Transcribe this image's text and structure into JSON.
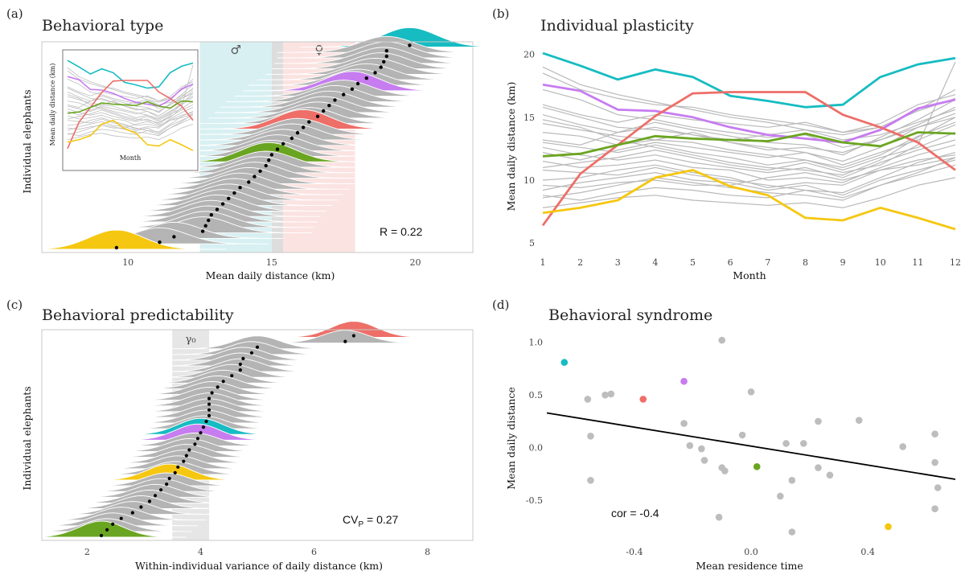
{
  "colors": {
    "teal": "#16bcc2",
    "purple": "#c77cf0",
    "red": "#ee6e68",
    "green": "#6aa521",
    "yellow": "#f5c710",
    "grey": "#b4b4b4"
  },
  "chart_data": [
    {
      "panel": "(a)",
      "type": "ridgeline",
      "title": "Behavioral type",
      "xlabel": "Mean daily distance (km)",
      "ylabel": "Individual elephants",
      "xlim": [
        7,
        22
      ],
      "xticks": [
        10,
        15,
        20
      ],
      "band_male": {
        "label": "♂",
        "range": [
          12.5,
          15
        ]
      },
      "band_female": {
        "label": "♀",
        "range": [
          15.4,
          17.9
        ]
      },
      "annotation": "R = 0.22",
      "means": [
        9.6,
        11.1,
        11.6,
        12.6,
        12.7,
        12.8,
        12.9,
        13.1,
        13.3,
        13.5,
        13.7,
        13.9,
        14.2,
        14.4,
        14.6,
        14.8,
        14.9,
        15.0,
        15.2,
        15.4,
        15.7,
        15.9,
        16.1,
        16.3,
        16.6,
        16.8,
        17.0,
        17.2,
        17.5,
        17.8,
        18.0,
        18.3,
        18.6,
        18.8,
        18.9,
        19.0,
        19.0,
        19.8
      ],
      "highlights": [
        {
          "index": 0,
          "color": "yellow"
        },
        {
          "index": 16,
          "color": "green"
        },
        {
          "index": 22,
          "color": "red"
        },
        {
          "index": 29,
          "color": "purple"
        },
        {
          "index": 37,
          "color": "teal"
        }
      ],
      "inset": {
        "ylabel": "Mean daily distance (km)",
        "xlabel": "Month"
      }
    },
    {
      "panel": "(b)",
      "type": "line",
      "title": "Individual plasticity",
      "xlabel": "Month",
      "ylabel": "Mean daily distance (km)",
      "x": [
        1,
        2,
        3,
        4,
        5,
        6,
        7,
        8,
        9,
        10,
        11,
        12
      ],
      "xlim": [
        1,
        12
      ],
      "ylim": [
        4.5,
        21
      ],
      "yticks": [
        5,
        10,
        15,
        20
      ],
      "series": [
        {
          "name": "teal",
          "color": "teal",
          "values": [
            20.1,
            19.1,
            18.0,
            18.8,
            18.2,
            16.7,
            16.3,
            15.8,
            16.0,
            18.2,
            19.2,
            19.7
          ]
        },
        {
          "name": "purple",
          "color": "purple",
          "values": [
            17.6,
            17.1,
            15.6,
            15.5,
            15.0,
            14.2,
            13.6,
            13.3,
            13.0,
            14.0,
            15.7,
            16.4
          ]
        },
        {
          "name": "red",
          "color": "red",
          "values": [
            6.4,
            10.5,
            12.8,
            15.1,
            16.9,
            17.0,
            17.0,
            17.0,
            15.2,
            14.2,
            13.0,
            10.8
          ]
        },
        {
          "name": "green",
          "color": "green",
          "values": [
            11.9,
            12.1,
            12.8,
            13.5,
            13.3,
            13.2,
            13.1,
            13.7,
            13.0,
            12.7,
            13.8,
            13.7
          ]
        },
        {
          "name": "yellow",
          "color": "yellow",
          "values": [
            7.4,
            7.8,
            8.4,
            10.2,
            10.8,
            9.5,
            8.8,
            7.0,
            6.8,
            7.8,
            7.0,
            6.1
          ]
        }
      ],
      "grey_series": [
        [
          19.0,
          17.6,
          16.8,
          16.2,
          15.6,
          15.0,
          14.6,
          14.0,
          13.6,
          14.2,
          15.5,
          16.5
        ],
        [
          18.5,
          17.2,
          16.5,
          16.0,
          15.8,
          15.2,
          14.8,
          14.4,
          13.8,
          14.5,
          16.0,
          16.8
        ],
        [
          16.0,
          15.2,
          14.6,
          15.2,
          14.8,
          14.5,
          14.2,
          14.6,
          13.8,
          14.2,
          15.6,
          17.2
        ],
        [
          15.2,
          14.4,
          13.8,
          14.6,
          14.0,
          13.5,
          13.0,
          12.8,
          12.0,
          13.4,
          14.8,
          16.4
        ],
        [
          14.5,
          14.0,
          13.5,
          13.2,
          13.8,
          13.0,
          12.6,
          12.2,
          11.5,
          12.6,
          14.2,
          15.3
        ],
        [
          13.8,
          13.5,
          12.8,
          13.2,
          13.0,
          12.4,
          12.0,
          11.6,
          11.0,
          12.0,
          13.5,
          14.6
        ],
        [
          13.0,
          12.6,
          12.2,
          12.8,
          12.2,
          11.8,
          11.2,
          11.6,
          10.8,
          11.8,
          12.6,
          13.8
        ],
        [
          12.6,
          12.0,
          11.6,
          12.0,
          11.4,
          11.0,
          10.6,
          11.0,
          10.2,
          11.4,
          12.4,
          13.2
        ],
        [
          11.5,
          11.0,
          11.2,
          11.6,
          11.0,
          10.8,
          10.0,
          10.2,
          9.8,
          11.0,
          12.0,
          12.8
        ],
        [
          10.8,
          10.6,
          10.4,
          11.0,
          10.4,
          10.0,
          9.6,
          9.2,
          9.0,
          10.2,
          11.4,
          12.2
        ],
        [
          10.0,
          10.2,
          10.8,
          11.2,
          10.6,
          10.2,
          9.4,
          9.8,
          9.6,
          10.8,
          11.6,
          12.0
        ],
        [
          9.2,
          9.8,
          10.2,
          10.6,
          10.0,
          9.8,
          9.2,
          9.6,
          8.8,
          10.0,
          10.8,
          11.6
        ],
        [
          8.6,
          9.0,
          9.6,
          10.2,
          9.8,
          9.4,
          9.0,
          8.8,
          8.4,
          9.6,
          10.4,
          11.2
        ],
        [
          7.8,
          8.2,
          8.6,
          8.8,
          8.4,
          8.2,
          8.0,
          8.2,
          7.8,
          8.6,
          9.6,
          10.2
        ],
        [
          8.8,
          8.4,
          9.0,
          9.4,
          9.2,
          8.8,
          8.6,
          9.2,
          8.6,
          9.6,
          10.6,
          11.8
        ],
        [
          14.8,
          14.2,
          13.2,
          12.6,
          12.0,
          11.4,
          11.0,
          10.8,
          10.4,
          11.6,
          13.4,
          15.0
        ],
        [
          13.2,
          12.8,
          13.8,
          14.2,
          13.6,
          13.0,
          12.4,
          12.6,
          12.2,
          13.2,
          14.4,
          15.8
        ],
        [
          12.2,
          11.6,
          12.4,
          13.0,
          12.6,
          12.2,
          11.8,
          12.2,
          11.2,
          12.2,
          13.2,
          14.4
        ],
        [
          17.2,
          16.4,
          15.2,
          14.8,
          14.2,
          13.8,
          13.4,
          13.6,
          12.6,
          13.2,
          14.2,
          15.0
        ],
        [
          11.0,
          11.4,
          11.8,
          12.4,
          11.8,
          11.2,
          10.8,
          11.4,
          10.6,
          11.2,
          12.8,
          19.4
        ],
        [
          9.6,
          9.4,
          9.8,
          10.0,
          9.6,
          9.6,
          10.2,
          10.6,
          10.0,
          10.8,
          11.2,
          11.8
        ],
        [
          15.8,
          15.0,
          14.2,
          14.0,
          13.6,
          13.2,
          13.6,
          14.0,
          13.2,
          13.6,
          14.6,
          15.6
        ]
      ]
    },
    {
      "panel": "(c)",
      "type": "ridgeline",
      "title": "Behavioral predictability",
      "xlabel": "Within-individual variance of daily distance (km)",
      "ylabel": "Individual elephants",
      "xlim": [
        1.2,
        8.8
      ],
      "xticks": [
        2,
        4,
        6,
        8
      ],
      "band": {
        "label": "γ₀",
        "range": [
          3.5,
          4.15
        ]
      },
      "annotation": "CV",
      "annotation_sub": "P",
      "annotation_val": " = 0.27",
      "means": [
        2.25,
        2.35,
        2.45,
        2.6,
        2.8,
        2.95,
        3.1,
        3.2,
        3.3,
        3.4,
        3.45,
        3.55,
        3.6,
        3.7,
        3.75,
        3.8,
        3.9,
        3.95,
        4.0,
        4.05,
        4.1,
        4.15,
        4.15,
        4.15,
        4.15,
        4.2,
        4.3,
        4.4,
        4.55,
        4.7,
        4.7,
        4.75,
        4.9,
        5.0,
        6.55,
        6.7
      ],
      "highlights": [
        {
          "index": 0,
          "color": "green"
        },
        {
          "index": 10,
          "color": "yellow"
        },
        {
          "index": 17,
          "color": "purple"
        },
        {
          "index": 18,
          "color": "teal"
        },
        {
          "index": 35,
          "color": "red"
        }
      ]
    },
    {
      "panel": "(d)",
      "type": "scatter",
      "title": "Behavioral syndrome",
      "xlabel": "Mean residence time",
      "ylabel": "Mean daily distance",
      "xlim": [
        -0.7,
        0.7
      ],
      "ylim": [
        -0.88,
        1.12
      ],
      "xticks": [
        -0.4,
        0.0,
        0.4
      ],
      "yticks": [
        -0.5,
        0.0,
        0.5,
        1.0
      ],
      "xtick_labels": [
        "-0.4",
        "0.0",
        "0.4"
      ],
      "ytick_labels": [
        "-0.5",
        "0.0",
        "0.5",
        "1.0"
      ],
      "trend": {
        "x": [
          -0.7,
          0.7
        ],
        "y": [
          0.33,
          -0.3
        ]
      },
      "annotation": "cor = -0.4",
      "points": [
        {
          "x": -0.64,
          "y": 0.81,
          "c": "teal"
        },
        {
          "x": -0.37,
          "y": 0.46,
          "c": "red"
        },
        {
          "x": -0.23,
          "y": 0.63,
          "c": "purple"
        },
        {
          "x": 0.02,
          "y": -0.18,
          "c": "green"
        },
        {
          "x": 0.47,
          "y": -0.75,
          "c": "yellow"
        },
        {
          "x": -0.56,
          "y": 0.46,
          "c": "grey"
        },
        {
          "x": -0.5,
          "y": 0.5,
          "c": "grey"
        },
        {
          "x": -0.48,
          "y": 0.51,
          "c": "grey"
        },
        {
          "x": -0.55,
          "y": 0.11,
          "c": "grey"
        },
        {
          "x": -0.55,
          "y": -0.31,
          "c": "grey"
        },
        {
          "x": -0.23,
          "y": 0.23,
          "c": "grey"
        },
        {
          "x": -0.21,
          "y": 0.02,
          "c": "grey"
        },
        {
          "x": -0.17,
          "y": -0.01,
          "c": "grey"
        },
        {
          "x": -0.16,
          "y": -0.12,
          "c": "grey"
        },
        {
          "x": -0.1,
          "y": -0.19,
          "c": "grey"
        },
        {
          "x": -0.09,
          "y": -0.22,
          "c": "grey"
        },
        {
          "x": -0.1,
          "y": 1.02,
          "c": "grey"
        },
        {
          "x": -0.03,
          "y": 0.12,
          "c": "grey"
        },
        {
          "x": 0.0,
          "y": 0.53,
          "c": "grey"
        },
        {
          "x": 0.12,
          "y": 0.04,
          "c": "grey"
        },
        {
          "x": 0.18,
          "y": 0.04,
          "c": "grey"
        },
        {
          "x": 0.1,
          "y": -0.46,
          "c": "grey"
        },
        {
          "x": 0.14,
          "y": -0.31,
          "c": "grey"
        },
        {
          "x": -0.11,
          "y": -0.66,
          "c": "grey"
        },
        {
          "x": 0.14,
          "y": -0.8,
          "c": "grey"
        },
        {
          "x": 0.23,
          "y": 0.25,
          "c": "grey"
        },
        {
          "x": 0.23,
          "y": -0.19,
          "c": "grey"
        },
        {
          "x": 0.27,
          "y": -0.26,
          "c": "grey"
        },
        {
          "x": 0.37,
          "y": 0.26,
          "c": "grey"
        },
        {
          "x": 0.52,
          "y": 0.01,
          "c": "grey"
        },
        {
          "x": 0.63,
          "y": 0.13,
          "c": "grey"
        },
        {
          "x": 0.63,
          "y": -0.14,
          "c": "grey"
        },
        {
          "x": 0.64,
          "y": -0.38,
          "c": "grey"
        },
        {
          "x": 0.63,
          "y": -0.58,
          "c": "grey"
        }
      ]
    }
  ]
}
